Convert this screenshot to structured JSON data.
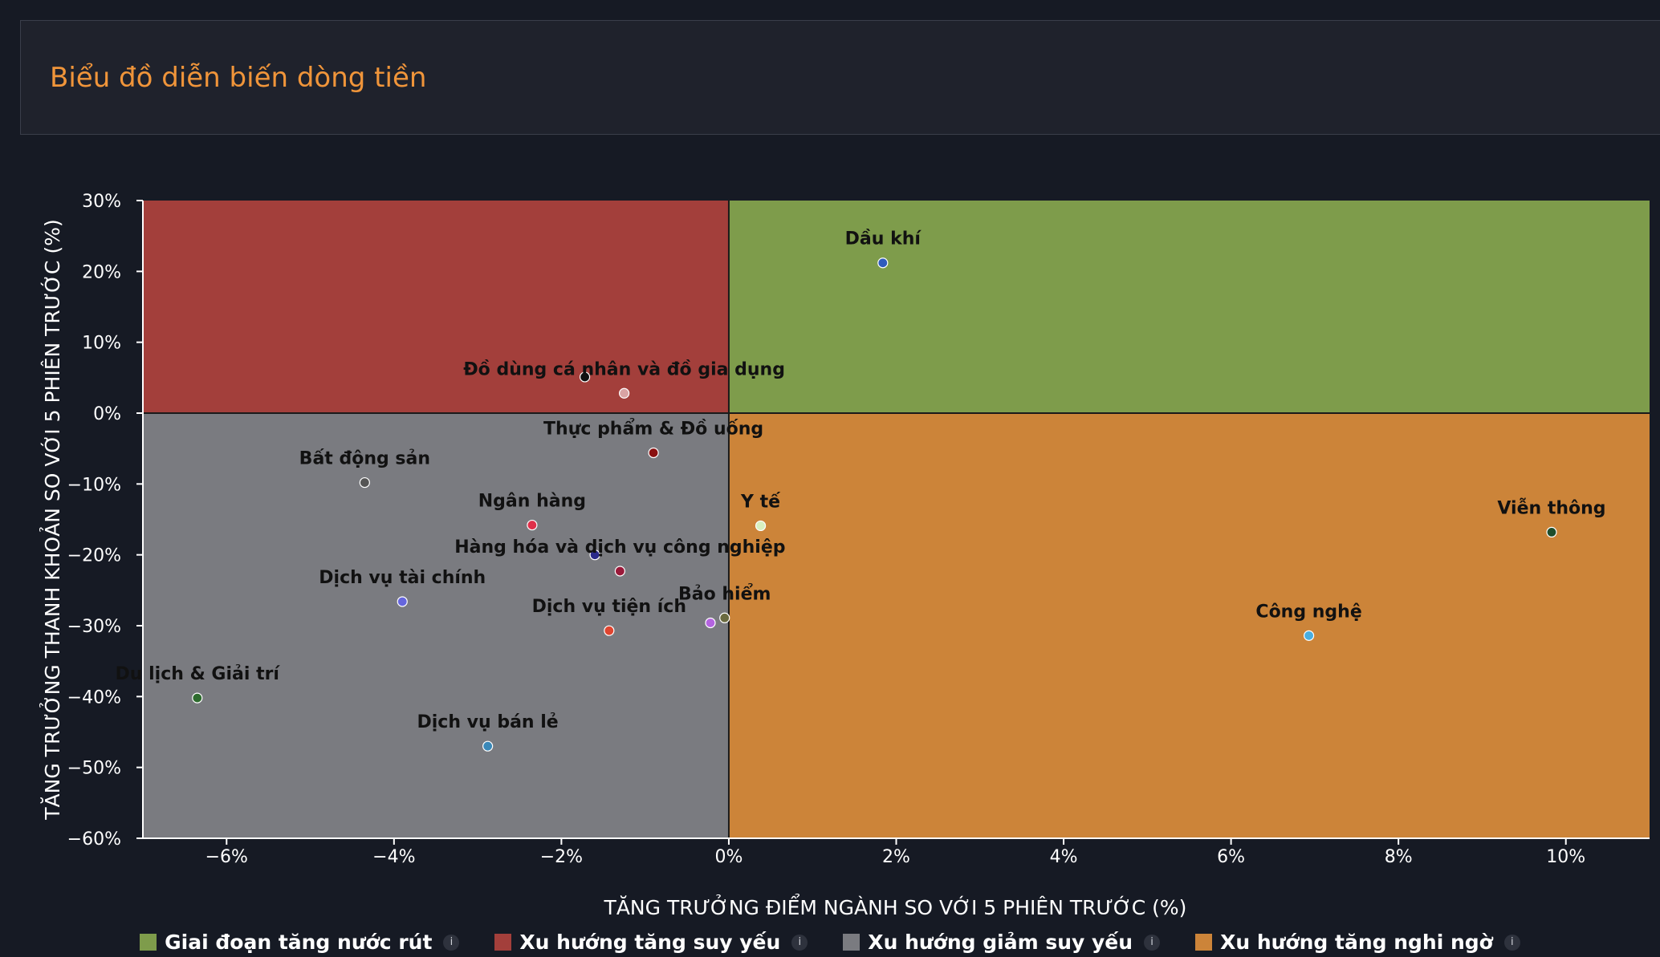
{
  "header": {
    "title": "Biểu đồ diễn biến dòng tiền"
  },
  "legend": [
    {
      "label": "Giai đoạn tăng nước rút",
      "color": "#7e9c4b",
      "info": "i"
    },
    {
      "label": "Xu hướng tăng suy yếu",
      "color": "#a33f3b",
      "info": "i"
    },
    {
      "label": "Xu hướng giảm suy yếu",
      "color": "#7a7b80",
      "info": "i"
    },
    {
      "label": "Xu hướng tăng nghi ngờ",
      "color": "#cc8439",
      "info": "i"
    }
  ],
  "chart_data": {
    "type": "scatter",
    "title": "",
    "xlabel": "TĂNG TRƯỞNG ĐIỂM NGÀNH SO VỚI 5 PHIÊN TRƯỚC (%)",
    "ylabel": "TĂNG TRƯỞNG THANH KHOẢN SO VỚI 5 PHIÊN TRƯỚC (%)",
    "xlim": [
      -7,
      11
    ],
    "ylim": [
      -60,
      30
    ],
    "x_ticks": [
      -6,
      -4,
      -2,
      0,
      2,
      4,
      6,
      8,
      10
    ],
    "y_ticks": [
      30,
      20,
      10,
      0,
      -10,
      -20,
      -30,
      -40,
      -50,
      -60
    ],
    "x_tick_labels": [
      "−6%",
      "−4%",
      "−2%",
      "0%",
      "2%",
      "4%",
      "6%",
      "8%",
      "10%"
    ],
    "y_tick_labels": [
      "30%",
      "20%",
      "10%",
      "0%",
      "−10%",
      "−20%",
      "−30%",
      "−40%",
      "−50%",
      "−60%"
    ],
    "quadrants": {
      "top_right": "#7e9c4b",
      "top_left": "#a33f3b",
      "bottom_left": "#7a7b80",
      "bottom_right": "#cc8439"
    },
    "points": [
      {
        "name": "Dầu khí",
        "x": 1.84,
        "y": 21.2,
        "color": "#2f5bbd"
      },
      {
        "name": "Đồ dùng cá nhân và đồ gia dụng",
        "x": -1.25,
        "y": 2.8,
        "color": "#d9a3a3"
      },
      {
        "name": "",
        "x": -1.72,
        "y": 5.1,
        "color": "#111111"
      },
      {
        "name": "Thực phẩm & Đồ uống",
        "x": -0.9,
        "y": -5.6,
        "color": "#8a1010"
      },
      {
        "name": "Bất động sản",
        "x": -4.35,
        "y": -9.8,
        "color": "#555555"
      },
      {
        "name": "Y tế",
        "x": 0.38,
        "y": -15.9,
        "color": "#d8f0c0"
      },
      {
        "name": "Viễn thông",
        "x": 9.83,
        "y": -16.8,
        "color": "#1e4d2b"
      },
      {
        "name": "Ngân hàng",
        "x": -2.35,
        "y": -15.8,
        "color": "#e0304a"
      },
      {
        "name": "Hàng hóa và dịch vụ công nghiệp",
        "x": -1.3,
        "y": -22.3,
        "color": "#9a1a3a"
      },
      {
        "name": "",
        "x": -1.6,
        "y": -20.0,
        "color": "#2a2a8a"
      },
      {
        "name": "Dịch vụ tài chính",
        "x": -3.9,
        "y": -26.6,
        "color": "#6666dd"
      },
      {
        "name": "Dịch vụ tiện ích",
        "x": -1.43,
        "y": -30.7,
        "color": "#e04530"
      },
      {
        "name": "Bảo hiểm",
        "x": -0.05,
        "y": -28.9,
        "color": "#6a6a40"
      },
      {
        "name": "",
        "x": -0.22,
        "y": -29.6,
        "color": "#b464e0"
      },
      {
        "name": "Công nghệ",
        "x": 6.93,
        "y": -31.4,
        "color": "#4aaee0"
      },
      {
        "name": "Du lịch & Giải trí",
        "x": -6.35,
        "y": -40.2,
        "color": "#2e6b2e"
      },
      {
        "name": "Dịch vụ bán lẻ",
        "x": -2.88,
        "y": -47.0,
        "color": "#3a88b8"
      }
    ]
  }
}
